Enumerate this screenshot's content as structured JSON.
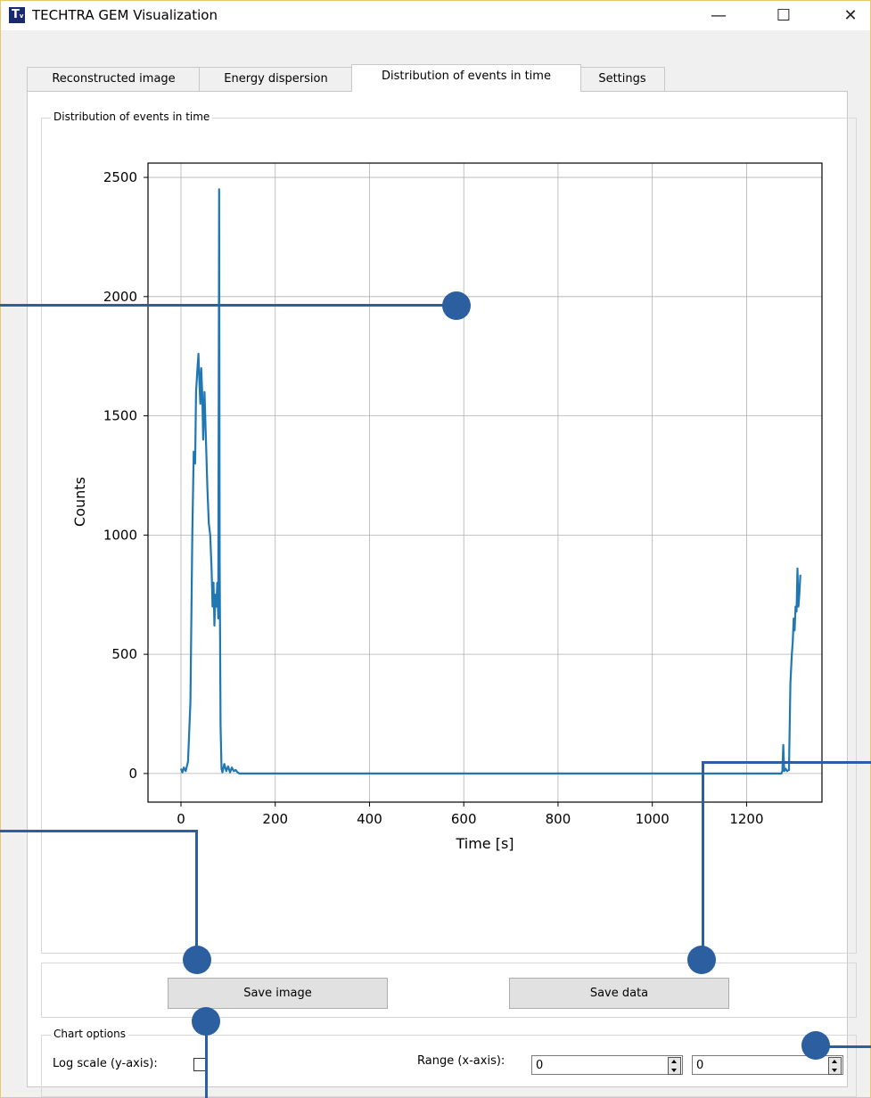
{
  "window": {
    "title": "TECHTRA GEM Visualization",
    "icon": "T",
    "icon_sub": "v",
    "minimize": "—",
    "maximize": "☐",
    "close": "✕"
  },
  "tabs": [
    "Reconstructed image",
    "Energy dispersion",
    "Distribution of events in time",
    "Settings"
  ],
  "active_tab": "Distribution of events in time",
  "chart_group_title": "Distribution of events in time",
  "buttons": {
    "save_image": "Save image",
    "save_data": "Save data"
  },
  "chart_options": {
    "title": "Chart options",
    "log_scale_label": "Log scale (y-axis):",
    "log_scale_checked": false,
    "range_label": "Range (x-axis):",
    "range_min": "0",
    "range_max": "0"
  },
  "colors": {
    "series": "#1f77b4",
    "annotation": "#2c5fa0"
  },
  "chart_data": {
    "type": "line",
    "xlabel": "Time [s]",
    "ylabel": "Counts",
    "xlim": [
      -70,
      1360
    ],
    "ylim": [
      -120,
      2560
    ],
    "xticks": [
      0,
      200,
      400,
      600,
      800,
      1000,
      1200
    ],
    "yticks": [
      0,
      500,
      1000,
      1500,
      2000,
      2500
    ],
    "grid": true,
    "series": [
      {
        "x": [
          0,
          3,
          6,
          10,
          15,
          20,
          24,
          27,
          30,
          32,
          35,
          37,
          39,
          41,
          43,
          45,
          47,
          50,
          53,
          56,
          59,
          62,
          65,
          67,
          69,
          71,
          73,
          75,
          77,
          79,
          81,
          82,
          84,
          86,
          88,
          92,
          96,
          100,
          104,
          108,
          112,
          116,
          120,
          124,
          128,
          135,
          200,
          400,
          600,
          800,
          1000,
          1200,
          1270,
          1274,
          1276,
          1278,
          1280,
          1283,
          1286,
          1290,
          1293,
          1296,
          1298,
          1300,
          1302,
          1304,
          1306,
          1308,
          1310,
          1312,
          1314,
          1316
        ],
        "y": [
          20,
          5,
          25,
          10,
          50,
          300,
          1000,
          1350,
          1300,
          1600,
          1700,
          1760,
          1650,
          1550,
          1700,
          1600,
          1400,
          1600,
          1400,
          1200,
          1050,
          1000,
          850,
          700,
          800,
          620,
          750,
          700,
          800,
          650,
          2450,
          900,
          200,
          20,
          5,
          40,
          10,
          30,
          5,
          25,
          10,
          15,
          5,
          0,
          0,
          0,
          0,
          0,
          0,
          0,
          0,
          0,
          0,
          0,
          10,
          120,
          10,
          20,
          10,
          15,
          380,
          500,
          550,
          650,
          600,
          700,
          680,
          860,
          700,
          750,
          830,
          830
        ]
      }
    ]
  }
}
